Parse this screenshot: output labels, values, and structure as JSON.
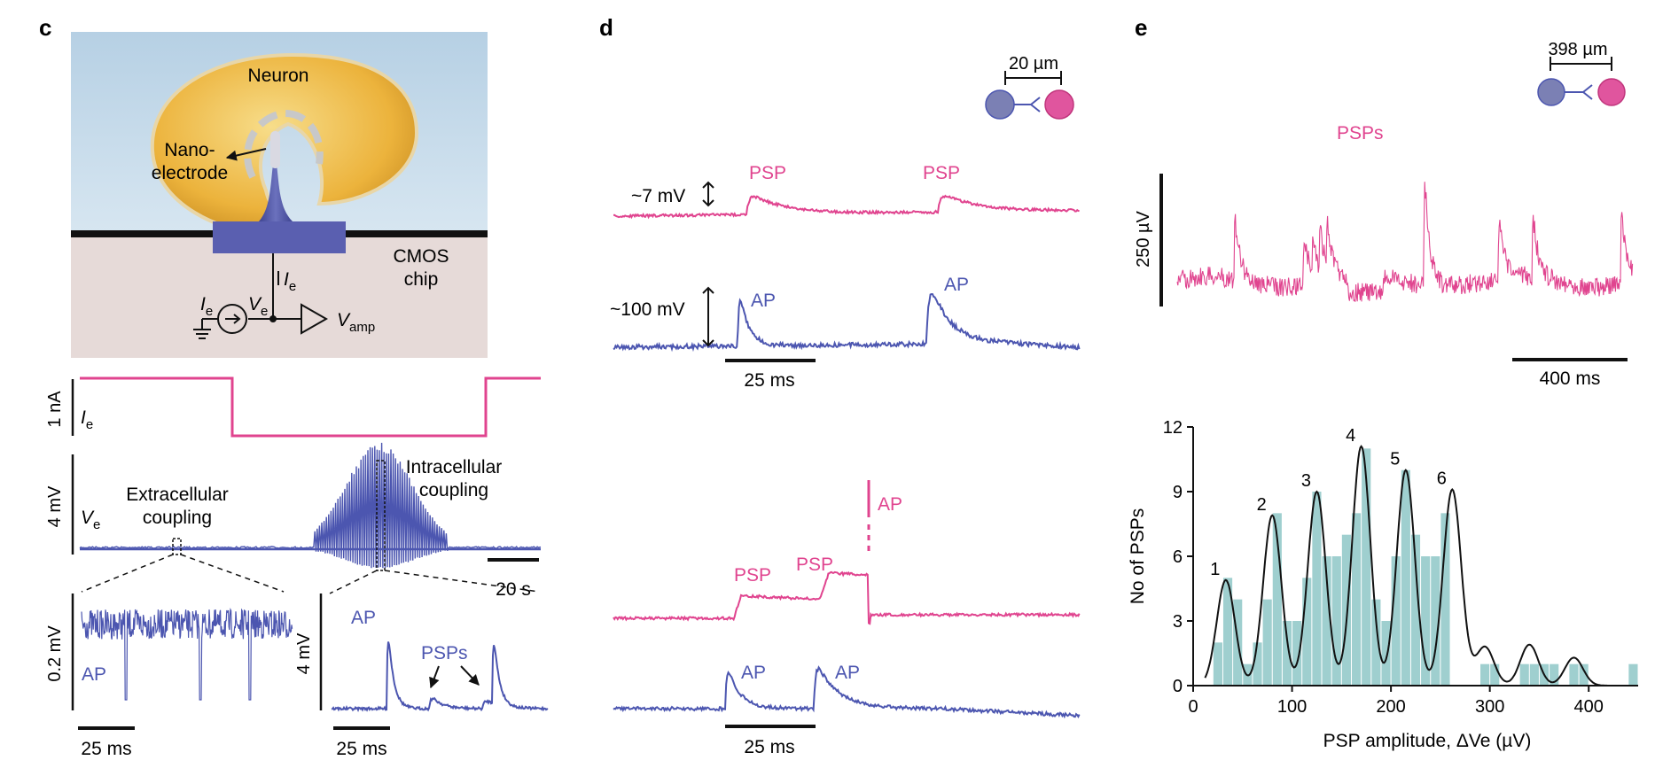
{
  "panel_c": {
    "label": "c",
    "schematic": {
      "neuron": "Neuron",
      "nano1": "Nano-",
      "nano2": "electrode",
      "cmos1": "CMOS",
      "cmos2": "chip",
      "ie": "I",
      "ie_sub": "e",
      "ve": "V",
      "ve_sub": "e",
      "vamp": "V",
      "vamp_sub": "amp"
    },
    "current_trace": {
      "scale": "1 nA",
      "label": "I",
      "label_sub": "e"
    },
    "voltage_trace": {
      "scale": "4 mV",
      "label": "V",
      "label_sub": "e",
      "extra1": "Extracellular",
      "extra2": "coupling",
      "intra1": "Intracellular",
      "intra2": "coupling",
      "time_scale": "20 s"
    },
    "zoom_left": {
      "scale": "0.2 mV",
      "ap": "AP",
      "time_scale": "25 ms"
    },
    "zoom_right": {
      "scale": "4 mV",
      "ap": "AP",
      "psps": "PSPs",
      "time_scale": "25 ms"
    }
  },
  "panel_d": {
    "label": "d",
    "distance": "20 µm",
    "top": {
      "psp_scale": "~7 mV",
      "ap_scale": "~100 mV",
      "psp1": "PSP",
      "psp2": "PSP",
      "ap1": "AP",
      "ap2": "AP",
      "time_scale": "25 ms"
    },
    "bottom": {
      "psp1": "PSP",
      "psp2": "PSP",
      "ap_post": "AP",
      "ap1": "AP",
      "ap2": "AP",
      "time_scale": "25 ms"
    }
  },
  "panel_e": {
    "label": "e",
    "distance": "398 µm",
    "trace": {
      "title": "PSPs",
      "vscale": "250 µV",
      "time_scale": "400 ms"
    },
    "colors": {
      "pre": "#7b80b4",
      "post": "#e0559e",
      "trace_pink": "#e0448f",
      "trace_blue": "#4c56b0",
      "bars": "#9fcfcf"
    }
  },
  "chart_data": {
    "type": "bar",
    "xlabel": "PSP amplitude, ΔVe (µV)",
    "ylabel": "No of PSPs",
    "xlim": [
      0,
      450
    ],
    "ylim": [
      0,
      12
    ],
    "x_ticks": [
      "0",
      "100",
      "200",
      "300",
      "400"
    ],
    "y_ticks": [
      "0",
      "3",
      "6",
      "9",
      "12"
    ],
    "bin_width": 10,
    "bin_centers": [
      15,
      25,
      35,
      45,
      55,
      65,
      75,
      85,
      95,
      105,
      115,
      125,
      135,
      145,
      155,
      165,
      175,
      185,
      195,
      205,
      215,
      225,
      235,
      245,
      255,
      265,
      275,
      285,
      295,
      305,
      315,
      325,
      335,
      345,
      355,
      365,
      375,
      385,
      395,
      405,
      415,
      425,
      435,
      445
    ],
    "values": [
      0,
      2,
      5,
      4,
      1,
      2,
      4,
      8,
      3,
      3,
      5,
      9,
      6,
      6,
      7,
      8,
      11,
      4,
      3,
      6,
      10,
      7,
      6,
      6,
      8,
      0,
      0,
      0,
      1,
      1,
      0,
      0,
      1,
      1,
      1,
      1,
      0,
      1,
      1,
      0,
      0,
      0,
      0,
      1
    ],
    "fit_curve": {
      "name": "multi-peak fit",
      "peaks": [
        [
          33,
          4.9
        ],
        [
          80,
          7.9
        ],
        [
          125,
          9.0
        ],
        [
          170,
          11.1
        ],
        [
          215,
          10.0
        ],
        [
          262,
          9.1
        ],
        [
          295,
          1.8
        ],
        [
          340,
          1.9
        ],
        [
          385,
          1.3
        ]
      ]
    },
    "peak_labels": [
      "1",
      "2",
      "3",
      "4",
      "5",
      "6"
    ]
  }
}
